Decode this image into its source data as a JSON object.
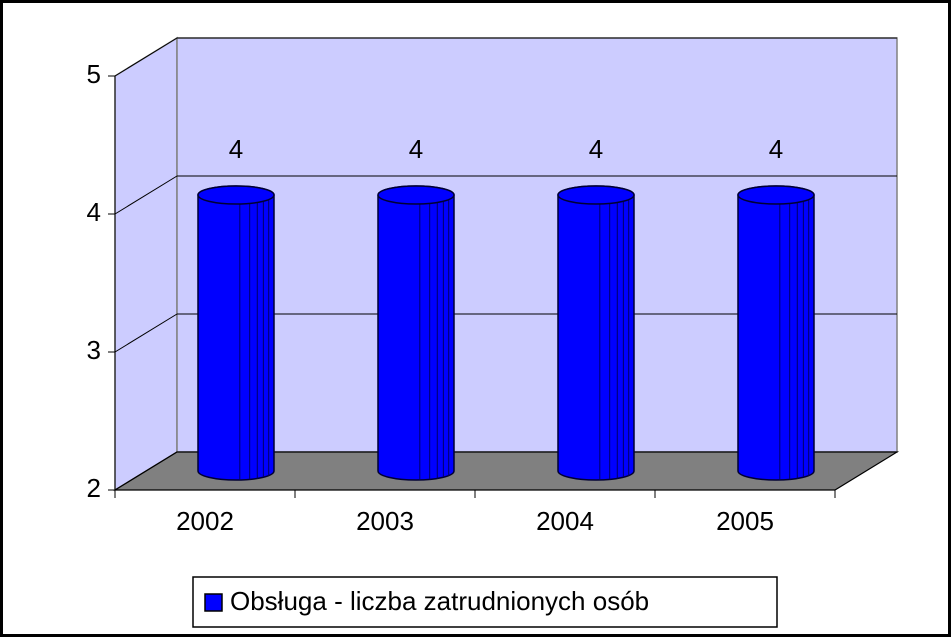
{
  "chart_data": {
    "type": "bar3d",
    "categories": [
      "2002",
      "2003",
      "2004",
      "2005"
    ],
    "series": [
      {
        "name": "Obsługa - liczba zatrudnionych osób",
        "color": "#0000ff",
        "values": [
          4,
          4,
          4,
          4
        ]
      }
    ],
    "ylim": [
      2,
      5
    ],
    "yticks": [
      2,
      3,
      4,
      5
    ],
    "grid": true,
    "legend": "bottom"
  }
}
